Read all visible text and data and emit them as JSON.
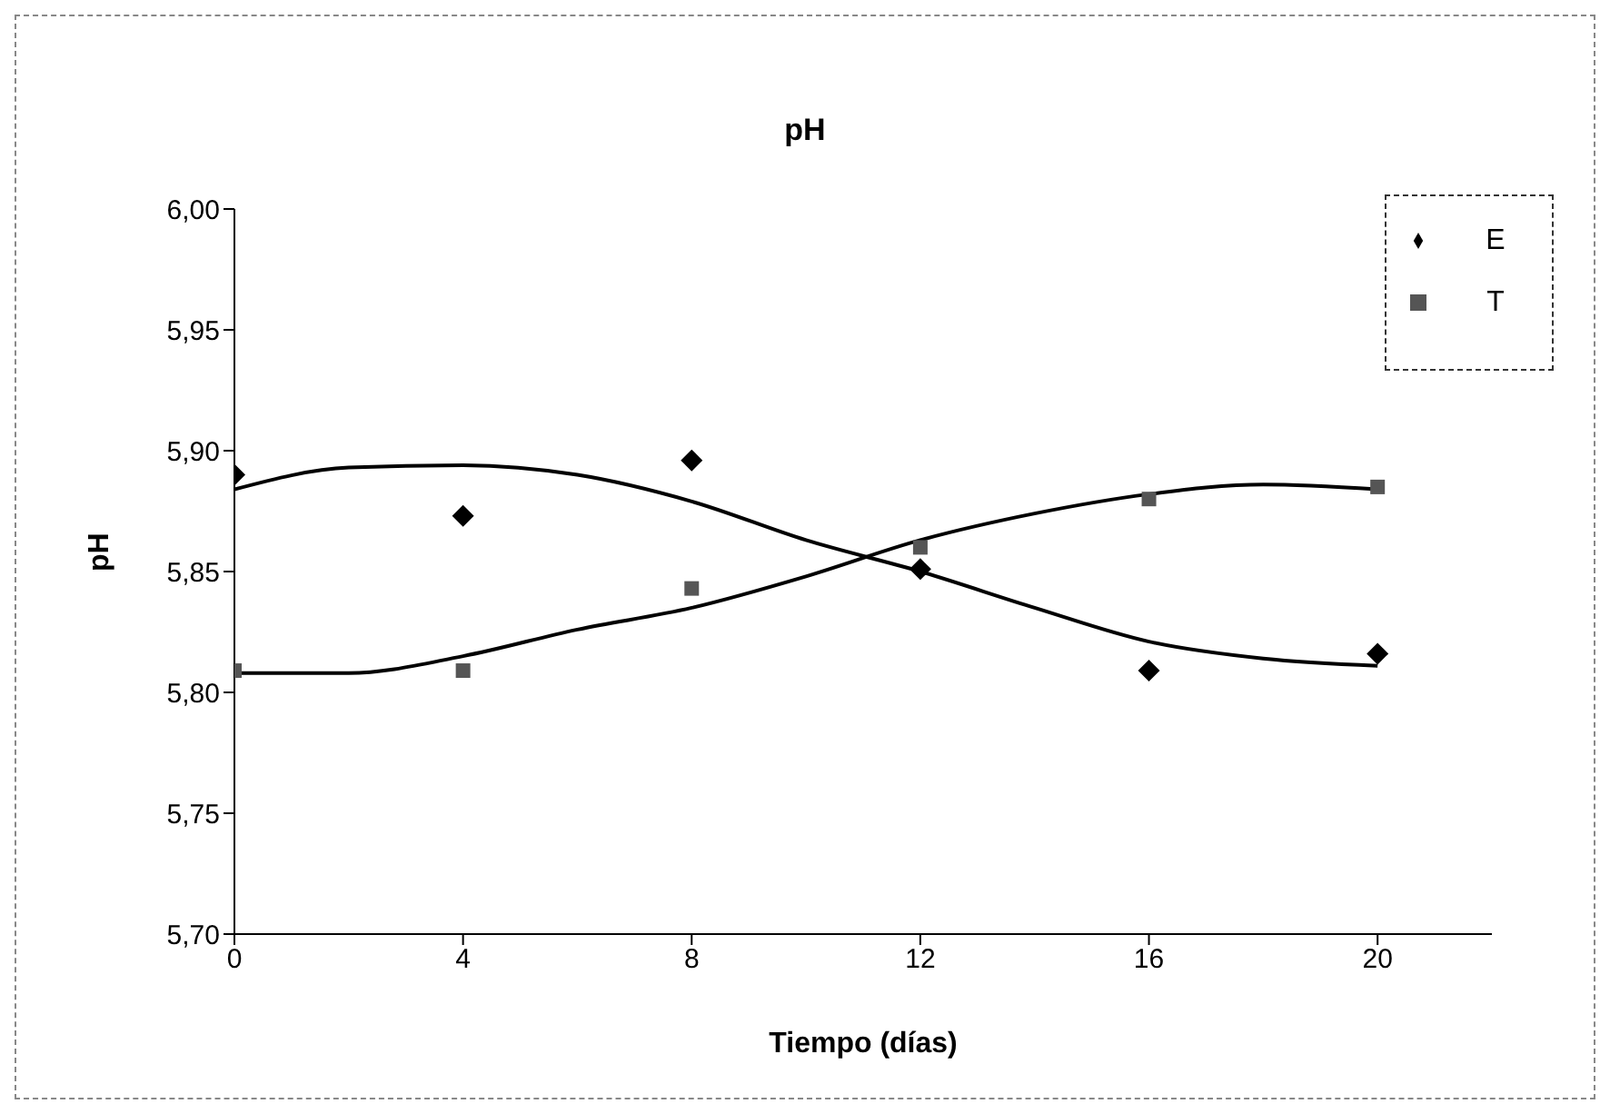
{
  "chart_data": {
    "type": "scatter",
    "title": "pH",
    "xlabel": "Tiempo (días)",
    "ylabel": "pH",
    "xlim": [
      0,
      22
    ],
    "xticks": [
      0,
      4,
      8,
      12,
      16,
      20
    ],
    "ylim": [
      5.7,
      6.0
    ],
    "yticks": [
      {
        "value": 5.7,
        "label": "5,70"
      },
      {
        "value": 5.75,
        "label": "5,75"
      },
      {
        "value": 5.8,
        "label": "5,80"
      },
      {
        "value": 5.85,
        "label": "5,85"
      },
      {
        "value": 5.9,
        "label": "5,90"
      },
      {
        "value": 5.95,
        "label": "5,95"
      },
      {
        "value": 6.0,
        "label": "6,00"
      }
    ],
    "legend": "top right",
    "x": [
      0,
      4,
      8,
      12,
      16,
      20
    ],
    "series": [
      {
        "name": "E",
        "color": "#000000",
        "marker": "diamond",
        "values": [
          5.89,
          5.873,
          5.896,
          5.851,
          5.809,
          5.816
        ]
      },
      {
        "name": "T",
        "color": "#555555",
        "marker": "square",
        "values": [
          5.809,
          5.809,
          5.843,
          5.86,
          5.88,
          5.885
        ]
      },
      {
        "type": "line",
        "color": "#000000",
        "marker": "none",
        "x": [
          0,
          2,
          4,
          6,
          8,
          10,
          12,
          14,
          16,
          18,
          20
        ],
        "values": [
          5.884,
          5.893,
          5.894,
          5.89,
          5.879,
          5.863,
          5.85,
          5.835,
          5.821,
          5.814,
          5.811
        ]
      },
      {
        "type": "line",
        "color": "#000000",
        "marker": "none",
        "x": [
          0,
          2,
          4,
          6,
          8,
          10,
          12,
          14,
          16,
          18,
          20
        ],
        "values": [
          5.808,
          5.808,
          5.815,
          5.826,
          5.835,
          5.848,
          5.863,
          5.874,
          5.882,
          5.886,
          5.884
        ]
      }
    ]
  }
}
